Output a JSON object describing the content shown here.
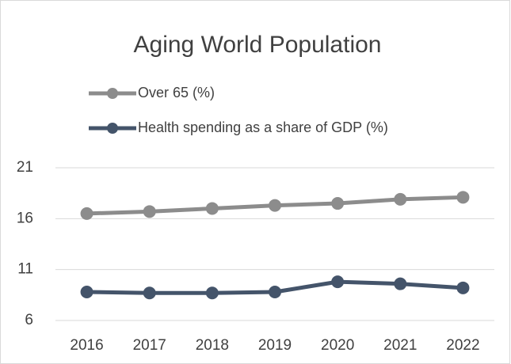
{
  "chart_data": {
    "type": "line",
    "title": "Aging World Population",
    "categories": [
      "2016",
      "2017",
      "2018",
      "2019",
      "2020",
      "2021",
      "2022"
    ],
    "series": [
      {
        "name": "Over 65 (%)",
        "color": "#8c8c8c",
        "values": [
          16.5,
          16.7,
          17.0,
          17.3,
          17.5,
          17.9,
          18.1
        ]
      },
      {
        "name": "Health spending as a share of GDP (%)",
        "color": "#44546a",
        "values": [
          8.8,
          8.7,
          8.7,
          8.8,
          9.8,
          9.6,
          9.2
        ]
      }
    ],
    "ylim": [
      6,
      21
    ],
    "yticks": [
      6,
      11,
      16,
      21
    ],
    "grid": true,
    "legend": "top-left"
  }
}
